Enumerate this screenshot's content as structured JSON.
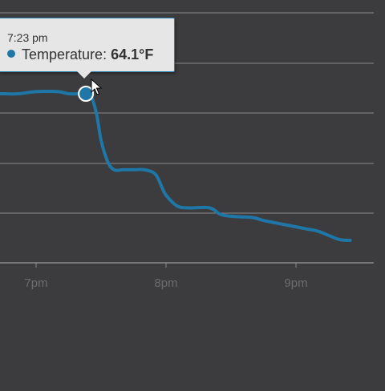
{
  "colors": {
    "background": "#3c3c3e",
    "gridline": "#8a8a8c",
    "series": "#1f77a8",
    "tick_label": "#6c6c6e",
    "tooltip_bg": "#e6e6e6"
  },
  "tooltip": {
    "time": "7:23 pm",
    "series_name": "Temperature",
    "separator": ":",
    "value": "64.1°F"
  },
  "chart_data": {
    "type": "line",
    "title": "",
    "xlabel": "",
    "ylabel": "",
    "x_axis": {
      "unit": "minutes",
      "range": [
        "6:45 pm",
        "9:35 pm"
      ],
      "ticks": [
        "7pm",
        "8pm",
        "9pm"
      ]
    },
    "y_axis": {
      "unit": "°F",
      "gridlines": 6,
      "labels_shown": false
    },
    "grid": "horizontal",
    "highlighted_point": {
      "x": "7:23 pm",
      "y": 64.1
    },
    "series": [
      {
        "name": "Temperature",
        "x": [
          "6:45 pm",
          "6:52 pm",
          "7:00 pm",
          "7:10 pm",
          "7:15 pm",
          "7:20 pm",
          "7:23 pm",
          "7:25 pm",
          "7:28 pm",
          "7:30 pm",
          "7:33 pm",
          "7:36 pm",
          "7:40 pm",
          "7:45 pm",
          "7:50 pm",
          "7:55 pm",
          "7:58 pm",
          "8:00 pm",
          "8:05 pm",
          "8:10 pm",
          "8:20 pm",
          "8:25 pm",
          "8:30 pm",
          "8:40 pm",
          "8:45 pm",
          "8:50 pm",
          "9:00 pm",
          "9:05 pm",
          "9:10 pm",
          "9:15 pm",
          "9:20 pm",
          "9:25 pm"
        ],
        "values": [
          64.1,
          64.1,
          64.15,
          64.15,
          64.1,
          64.1,
          64.1,
          64.1,
          63.6,
          63.0,
          62.5,
          62.3,
          62.3,
          62.3,
          62.3,
          62.2,
          61.9,
          61.7,
          61.45,
          61.4,
          61.4,
          61.25,
          61.2,
          61.17,
          61.1,
          61.05,
          60.95,
          60.9,
          60.85,
          60.75,
          60.65,
          60.63
        ]
      }
    ]
  }
}
